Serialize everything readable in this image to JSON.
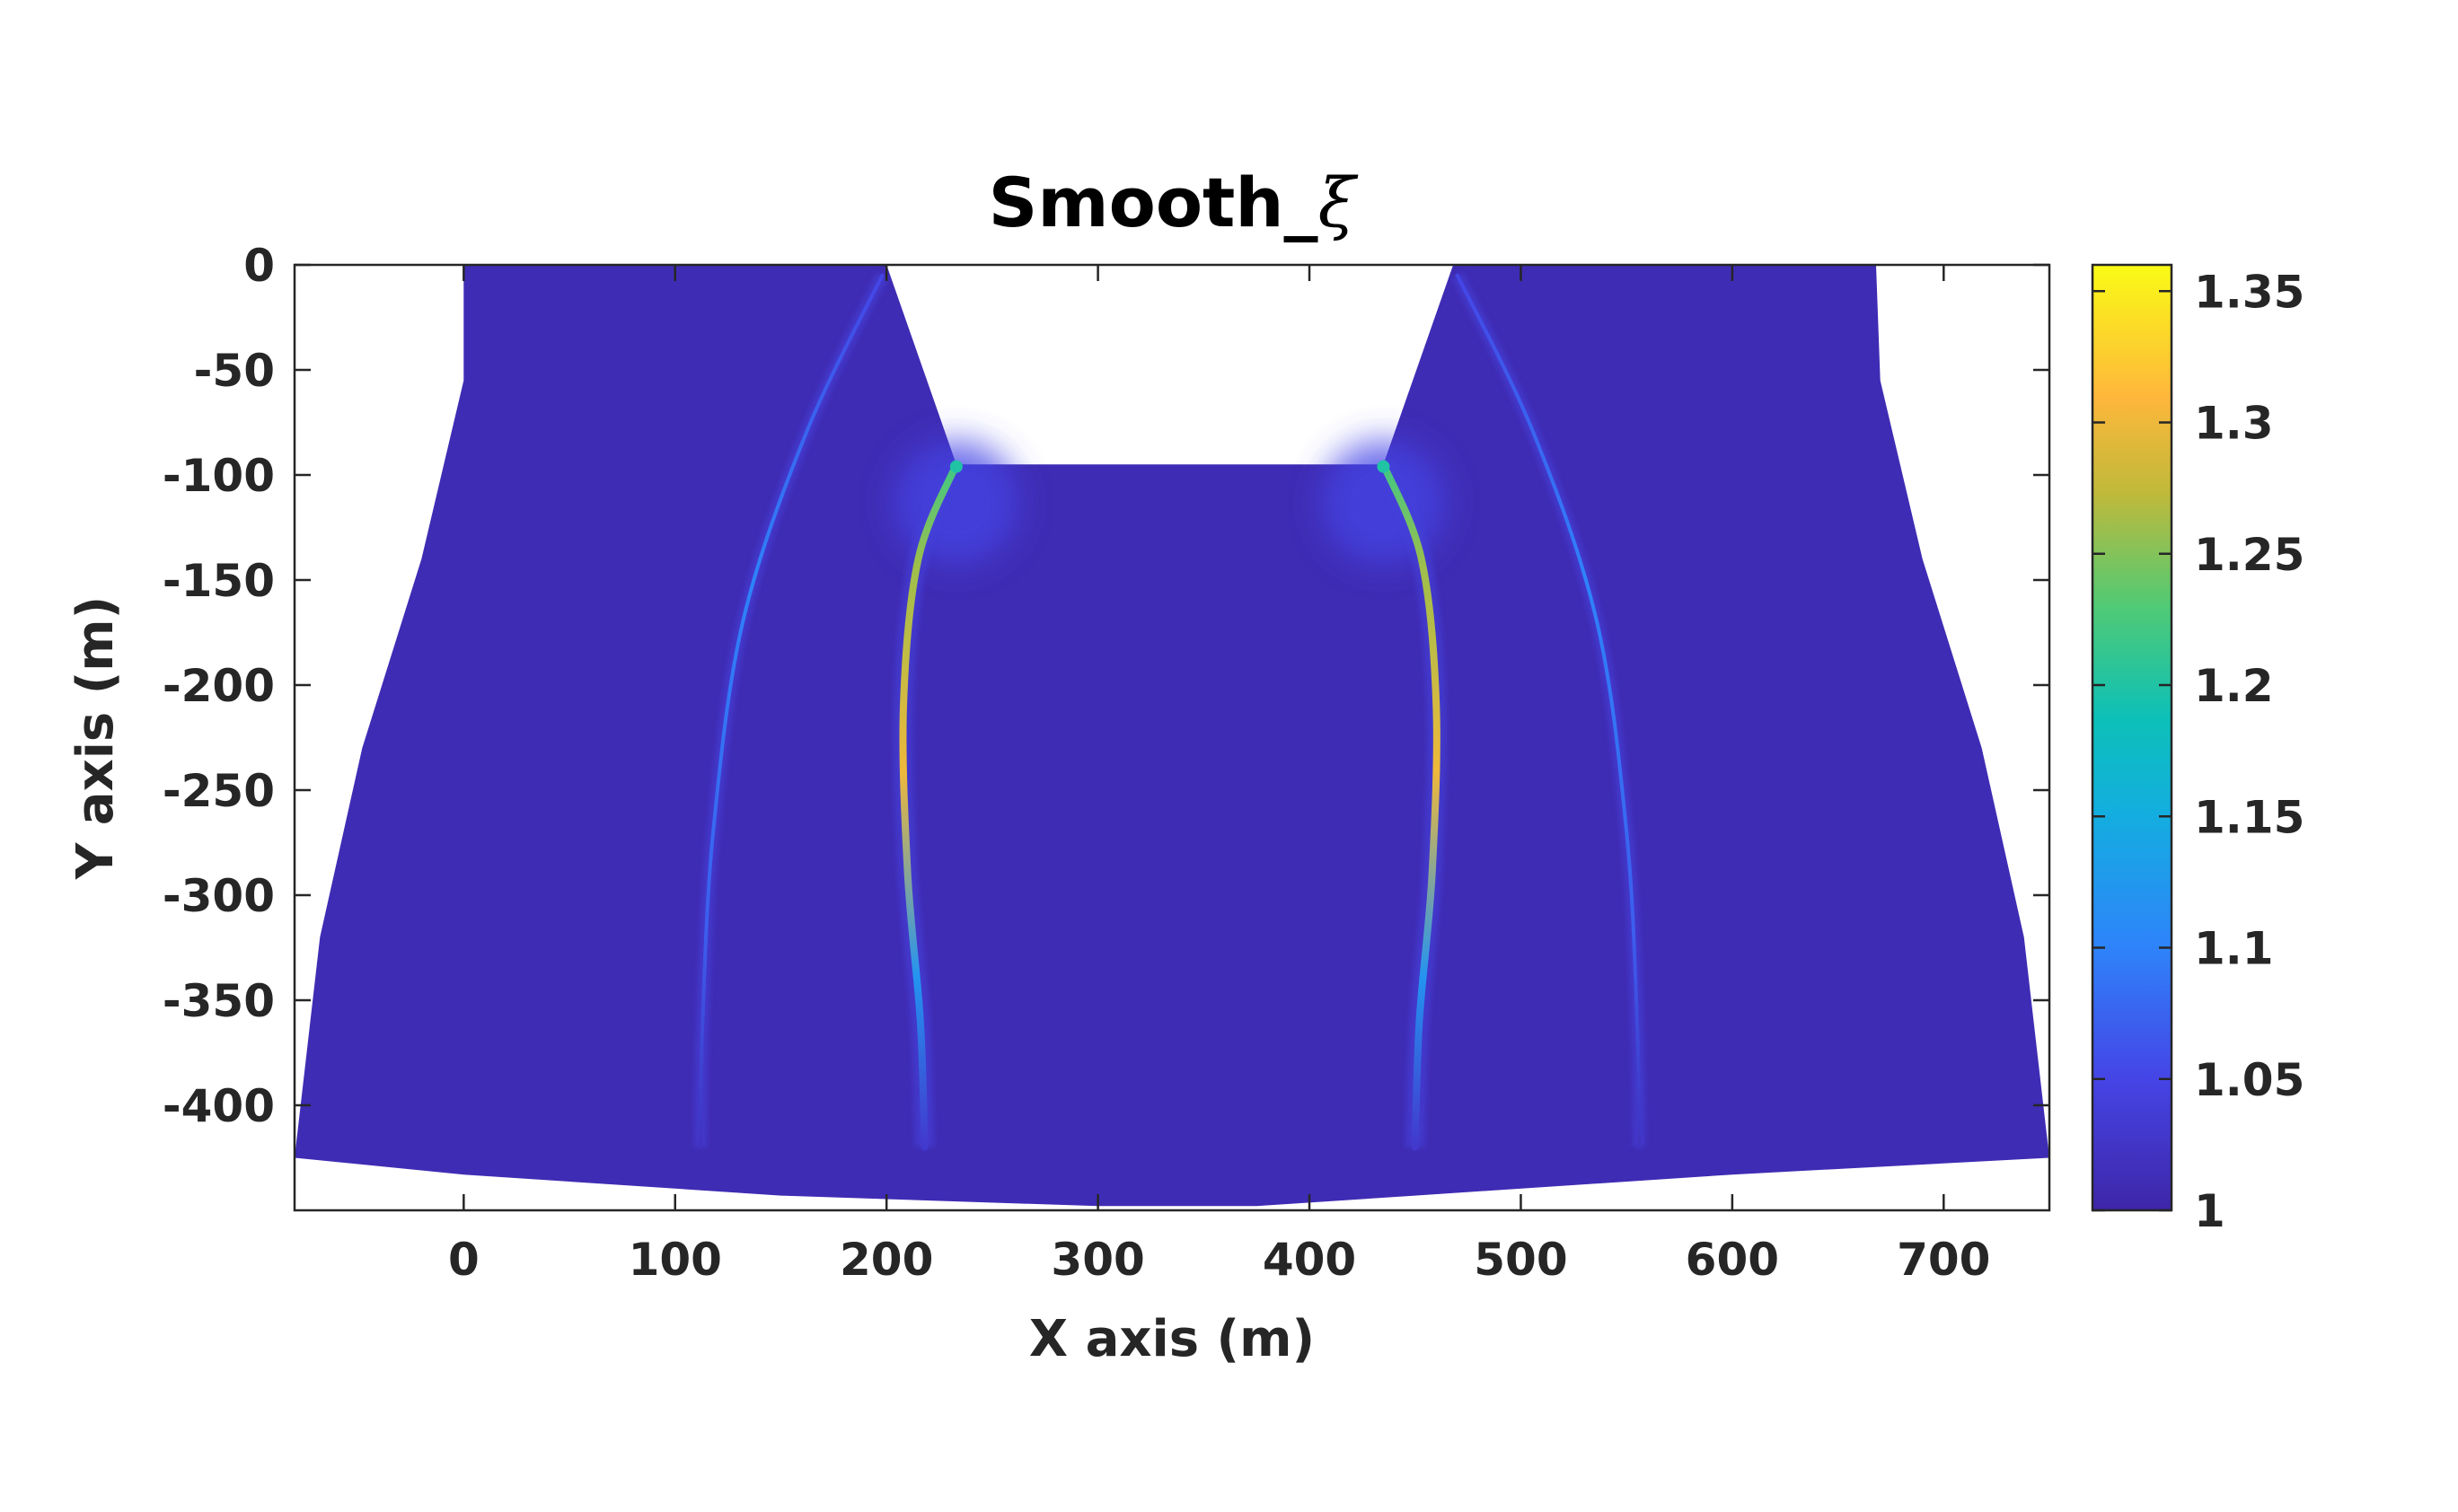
{
  "chart_data": {
    "type": "heatmap",
    "title": "Smooth_",
    "title_symbol": "ξ",
    "xlabel": "X axis (m)",
    "ylabel": "Y axis (m)",
    "xlim": [
      -80,
      750
    ],
    "ylim": [
      -450,
      0
    ],
    "xticks": [
      0,
      100,
      200,
      300,
      400,
      500,
      600,
      700
    ],
    "xtick_labels": [
      "0",
      "100",
      "200",
      "300",
      "400",
      "500",
      "600",
      "700"
    ],
    "yticks": [
      0,
      -50,
      -100,
      -150,
      -200,
      -250,
      -300,
      -350,
      -400
    ],
    "ytick_labels": [
      "0",
      "-50",
      "-100",
      "-150",
      "-200",
      "-250",
      "-300",
      "-350",
      "-400"
    ],
    "colorbar": {
      "range": [
        1,
        1.36
      ],
      "ticks": [
        1,
        1.05,
        1.1,
        1.15,
        1.2,
        1.25,
        1.3,
        1.35
      ],
      "tick_labels": [
        "1",
        "1.05",
        "1.1",
        "1.15",
        "1.2",
        "1.25",
        "1.3",
        "1.35"
      ],
      "colormap": "parula"
    },
    "domain_outline": [
      [
        0,
        0
      ],
      [
        200,
        0
      ],
      [
        233,
        -95
      ],
      [
        435,
        -95
      ],
      [
        468,
        0
      ],
      [
        668,
        0
      ],
      [
        670,
        -55
      ],
      [
        690,
        -140
      ],
      [
        718,
        -230
      ],
      [
        738,
        -320
      ],
      [
        750,
        -425
      ],
      [
        600,
        -433
      ],
      [
        450,
        -443
      ],
      [
        375,
        -448
      ],
      [
        300,
        -448
      ],
      [
        150,
        -443
      ],
      [
        0,
        -433
      ],
      [
        -80,
        -425
      ],
      [
        -68,
        -320
      ],
      [
        -48,
        -230
      ],
      [
        -20,
        -140
      ],
      [
        0,
        -55
      ]
    ],
    "ridges": [
      {
        "points": [
          [
            233,
            -95
          ],
          [
            215,
            -140
          ],
          [
            208,
            -210
          ],
          [
            210,
            -290
          ],
          [
            216,
            -360
          ],
          [
            218,
            -420
          ]
        ],
        "peak": 1.3
      },
      {
        "points": [
          [
            435,
            -95
          ],
          [
            453,
            -140
          ],
          [
            460,
            -210
          ],
          [
            458,
            -290
          ],
          [
            452,
            -360
          ],
          [
            450,
            -420
          ]
        ],
        "peak": 1.3
      },
      {
        "points": [
          [
            198,
            -5
          ],
          [
            162,
            -80
          ],
          [
            132,
            -170
          ],
          [
            118,
            -270
          ],
          [
            113,
            -360
          ],
          [
            112,
            -420
          ]
        ],
        "peak": 1.1
      },
      {
        "points": [
          [
            470,
            -5
          ],
          [
            506,
            -80
          ],
          [
            536,
            -170
          ],
          [
            550,
            -270
          ],
          [
            555,
            -360
          ],
          [
            556,
            -420
          ]
        ],
        "peak": 1.1
      }
    ],
    "corner_hotspots": [
      {
        "x": 233,
        "y": -96,
        "value": 1.2
      },
      {
        "x": 435,
        "y": -96,
        "value": 1.2
      }
    ],
    "background_value": 1.01
  }
}
